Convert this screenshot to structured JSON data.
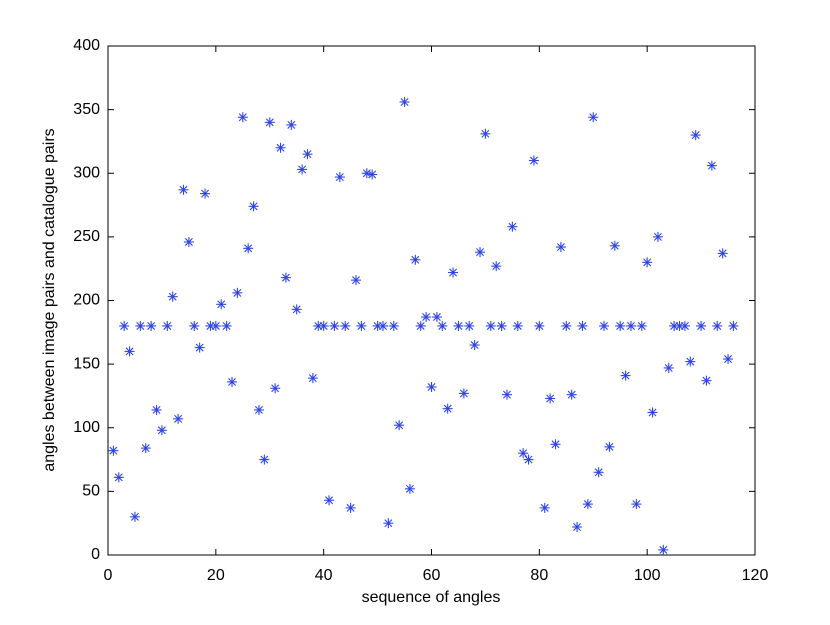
{
  "chart_data": {
    "type": "scatter",
    "x_label": "sequence of angles",
    "y_label": "angles between image pairs and catalogue pairs",
    "x": [
      1,
      2,
      3,
      4,
      5,
      6,
      7,
      8,
      9,
      10,
      11,
      12,
      13,
      14,
      15,
      16,
      17,
      18,
      19,
      20,
      21,
      22,
      23,
      24,
      25,
      26,
      27,
      28,
      29,
      30,
      31,
      32,
      33,
      34,
      35,
      36,
      37,
      38,
      39,
      40,
      41,
      42,
      43,
      44,
      45,
      46,
      47,
      48,
      49,
      50,
      51,
      52,
      53,
      54,
      55,
      56,
      57,
      58,
      59,
      60,
      61,
      62,
      63,
      64,
      65,
      66,
      67,
      68,
      69,
      70,
      71,
      72,
      73,
      74,
      75,
      76,
      77,
      78,
      79,
      80,
      81,
      82,
      83,
      84,
      85,
      86,
      87,
      88,
      89,
      90,
      91,
      92,
      93,
      94,
      95,
      96,
      97,
      98,
      99,
      100,
      101,
      102,
      103,
      104,
      105,
      106,
      107,
      108,
      109,
      110,
      111,
      112,
      113,
      114,
      115,
      116
    ],
    "series": [
      {
        "color": "#2f45e8",
        "values": [
          82,
          61,
          180,
          160,
          30,
          180,
          84,
          180,
          114,
          98,
          180,
          203,
          107,
          287,
          246,
          180,
          163,
          284,
          180,
          180,
          197,
          180,
          136,
          206,
          344,
          241,
          274,
          114,
          75,
          340,
          131,
          320,
          218,
          338,
          193,
          303,
          315,
          139,
          180,
          180,
          43,
          180,
          297,
          180,
          37,
          216,
          180,
          300,
          299,
          180,
          180,
          25,
          180,
          102,
          356,
          52,
          232,
          180,
          187,
          132,
          187,
          180,
          115,
          222,
          180,
          127,
          180,
          165,
          238,
          331,
          180,
          227,
          180,
          126,
          258,
          180,
          80,
          75,
          310,
          180,
          37,
          123,
          87,
          242,
          180,
          126,
          22,
          180,
          40,
          344,
          65,
          180,
          85,
          243,
          180,
          141,
          180,
          40,
          180,
          230,
          112,
          250,
          4,
          147,
          180,
          180,
          180,
          152,
          330,
          180,
          137,
          306,
          180,
          237,
          154,
          180
        ]
      }
    ],
    "xlim": [
      0,
      120
    ],
    "xticks": [
      0,
      20,
      40,
      60,
      80,
      100,
      120
    ],
    "ylim": [
      0,
      400
    ],
    "yticks": [
      0,
      50,
      100,
      150,
      200,
      250,
      300,
      350,
      400
    ],
    "grid": false
  }
}
